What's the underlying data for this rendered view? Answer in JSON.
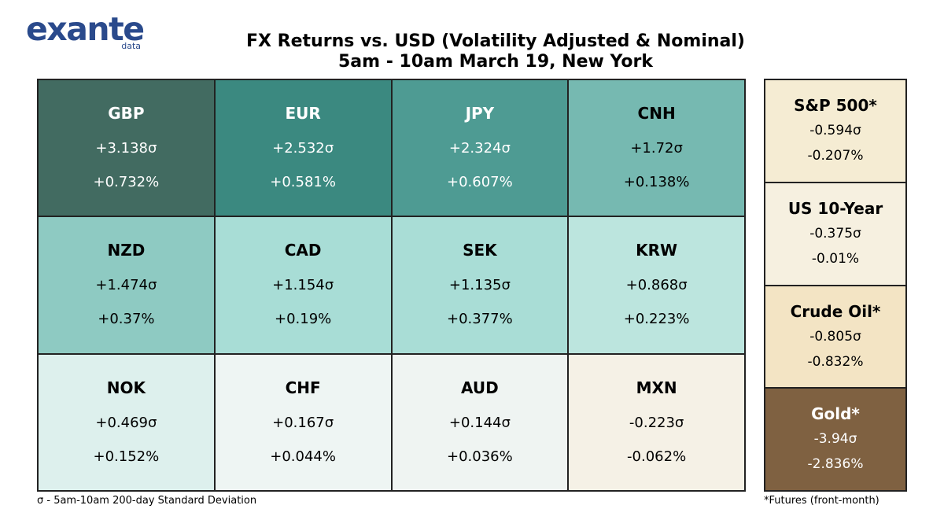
{
  "logo": {
    "word": "exante",
    "sub": "data"
  },
  "title_line1": "FX Returns vs. USD (Volatility Adjusted & Nominal)",
  "title_line2": "5am - 10am March 19, New York",
  "chart_data": [
    {
      "type": "table",
      "title": "FX Returns vs. USD (Volatility Adjusted & Nominal)",
      "subtitle": "5am - 10am March 19, New York",
      "rows": 3,
      "cols": 4,
      "cells": [
        {
          "code": "GBP",
          "sigma": "+3.138σ",
          "pct": "+0.732%",
          "color": "#426b61",
          "text_color": "#ffffff"
        },
        {
          "code": "EUR",
          "sigma": "+2.532σ",
          "pct": "+0.581%",
          "color": "#3b8980",
          "text_color": "#ffffff"
        },
        {
          "code": "JPY",
          "sigma": "+2.324σ",
          "pct": "+0.607%",
          "color": "#4e9b93",
          "text_color": "#ffffff"
        },
        {
          "code": "CNH",
          "sigma": "+1.72σ",
          "pct": "+0.138%",
          "color": "#76b9b1",
          "text_color": "#000000"
        },
        {
          "code": "NZD",
          "sigma": "+1.474σ",
          "pct": "+0.37%",
          "color": "#8ecac2",
          "text_color": "#000000"
        },
        {
          "code": "CAD",
          "sigma": "+1.154σ",
          "pct": "+0.19%",
          "color": "#a8ddd6",
          "text_color": "#000000"
        },
        {
          "code": "SEK",
          "sigma": "+1.135σ",
          "pct": "+0.377%",
          "color": "#a9ddd6",
          "text_color": "#000000"
        },
        {
          "code": "KRW",
          "sigma": "+0.868σ",
          "pct": "+0.223%",
          "color": "#bce5de",
          "text_color": "#000000"
        },
        {
          "code": "NOK",
          "sigma": "+0.469σ",
          "pct": "+0.152%",
          "color": "#ddf0ed",
          "text_color": "#000000"
        },
        {
          "code": "CHF",
          "sigma": "+0.167σ",
          "pct": "+0.044%",
          "color": "#eef5f3",
          "text_color": "#000000"
        },
        {
          "code": "AUD",
          "sigma": "+0.144σ",
          "pct": "+0.036%",
          "color": "#eff4f2",
          "text_color": "#000000"
        },
        {
          "code": "MXN",
          "sigma": "-0.223σ",
          "pct": "-0.062%",
          "color": "#f5f1e6",
          "text_color": "#000000"
        }
      ]
    },
    {
      "type": "table",
      "rows": 4,
      "cols": 1,
      "cells": [
        {
          "code": "S&P 500*",
          "sigma": "-0.594σ",
          "pct": "-0.207%",
          "color": "#f5ecd3",
          "text_color": "#000000"
        },
        {
          "code": "US 10-Year",
          "sigma": "-0.375σ",
          "pct": "-0.01%",
          "color": "#f6f0e0",
          "text_color": "#000000"
        },
        {
          "code": "Crude Oil*",
          "sigma": "-0.805σ",
          "pct": "-0.832%",
          "color": "#f3e4c4",
          "text_color": "#000000"
        },
        {
          "code": "Gold*",
          "sigma": "-3.94σ",
          "pct": "-2.836%",
          "color": "#7f6141",
          "text_color": "#ffffff"
        }
      ]
    }
  ],
  "footnote_left": "σ - 5am-10am 200-day Standard Deviation",
  "footnote_right": "*Futures (front-month)"
}
